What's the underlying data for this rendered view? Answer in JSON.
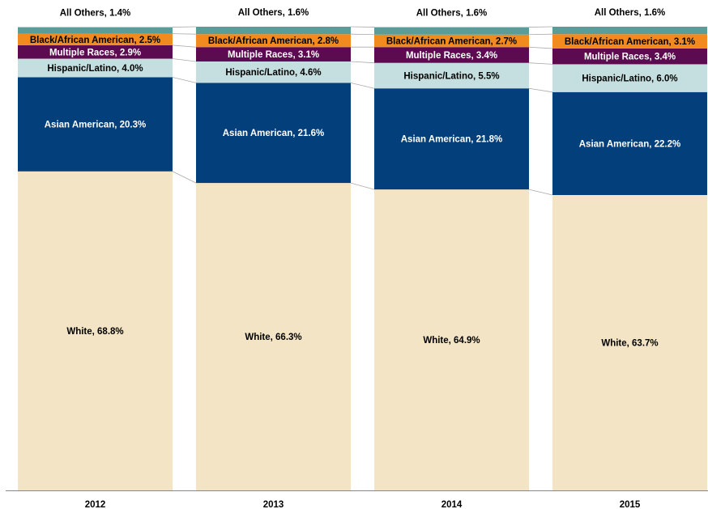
{
  "chart_data": {
    "type": "stacked_bar",
    "categories": [
      "2012",
      "2013",
      "2014",
      "2015"
    ],
    "ylim": [
      0,
      100
    ],
    "series": [
      {
        "color": "#f2e4c4",
        "values": [
          68.8,
          66.3,
          64.9,
          63.7
        ],
        "value_labels": [
          "White, 68.8%",
          "White, 66.3%",
          "White, 64.9%",
          "White, 63.7%"
        ]
      },
      {
        "color": "#033f7b",
        "values": [
          20.3,
          21.6,
          21.8,
          22.2
        ],
        "value_labels": [
          "Asian American, 20.3%",
          "Asian American, 21.6%",
          "Asian American, 21.8%",
          "Asian American, 22.2%"
        ]
      },
      {
        "color": "#c5dfe0",
        "values": [
          4.0,
          4.6,
          5.5,
          6.0
        ],
        "value_labels": [
          "Hispanic/Latino, 4.0%",
          "Hispanic/Latino, 4.6%",
          "Hispanic/Latino, 5.5%",
          "Hispanic/Latino, 6.0%"
        ]
      },
      {
        "color": "#5d0b50",
        "values": [
          2.9,
          3.1,
          3.4,
          3.4
        ],
        "value_labels": [
          "Multiple Races, 2.9%",
          "Multiple Races, 3.1%",
          "Multiple Races, 3.4%",
          "Multiple Races, 3.4%"
        ]
      },
      {
        "color": "#f18a1f",
        "values": [
          2.5,
          2.8,
          2.7,
          3.1
        ],
        "value_labels": [
          "Black/African American, 2.5%",
          "Black/African American, 2.8%",
          "Black/African American, 2.7%",
          "Black/African American, 3.1%"
        ]
      },
      {
        "color": "#5b9c98",
        "values": [
          1.4,
          1.6,
          1.6,
          1.6
        ],
        "value_labels": [
          "All Others, 1.4%",
          "All Others, 1.6%",
          "All Others, 1.6%",
          "All Others, 1.6%"
        ]
      }
    ]
  }
}
